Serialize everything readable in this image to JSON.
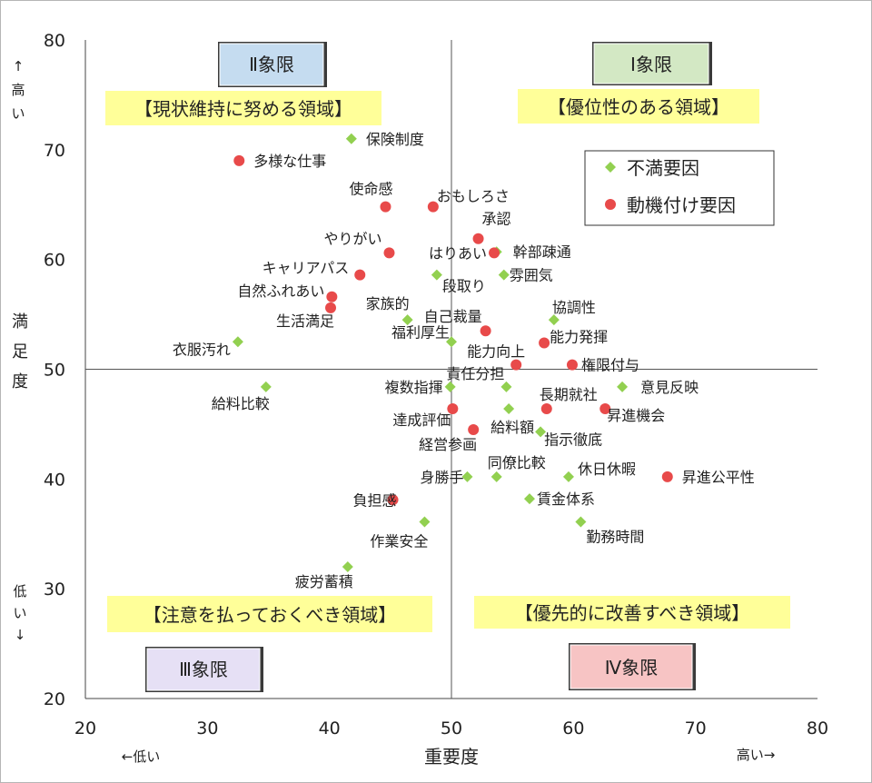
{
  "chart_data": {
    "type": "scatter",
    "title": "",
    "xlabel": "重要度",
    "ylabel": "満足度",
    "xlim": [
      20,
      80
    ],
    "ylim": [
      20,
      80
    ],
    "xticks": [
      20,
      30,
      40,
      50,
      60,
      70,
      80
    ],
    "yticks": [
      20,
      30,
      40,
      50,
      60,
      70,
      80
    ],
    "x_low_label": "←低い",
    "x_high_label": "高い→",
    "y_high_label": [
      "↑",
      "高",
      "い"
    ],
    "y_low_label": [
      "低",
      "い",
      "↓"
    ],
    "ylabel_chars": [
      "満",
      "足",
      "度"
    ],
    "quadrant_dividers": {
      "x": 50,
      "y": 50
    },
    "quadrants": [
      {
        "id": "q1",
        "label": "Ⅰ象限",
        "description": "【優位性のある領域】",
        "color": "#d3e8c4"
      },
      {
        "id": "q2",
        "label": "Ⅱ象限",
        "description": "【現状維持に努める領域】",
        "color": "#c5dcf0"
      },
      {
        "id": "q3",
        "label": "Ⅲ象限",
        "description": "【注意を払っておくべき領域】",
        "color": "#e6e0f5"
      },
      {
        "id": "q4",
        "label": "Ⅳ象限",
        "description": "【優先的に改善すべき領域】",
        "color": "#f7c4c4"
      }
    ],
    "description_bg": "#ffff99",
    "legend": [
      {
        "name": "不満要因",
        "marker": "diamond",
        "color": "#92d050"
      },
      {
        "name": "動機付け要因",
        "marker": "circle",
        "color": "#e84a4a"
      }
    ],
    "series": [
      {
        "name": "不満要因",
        "points": [
          {
            "label": "保険制度",
            "x": 41.8,
            "y": 71.0
          },
          {
            "label": "幹部疎通",
            "x": 53.7,
            "y": 60.7
          },
          {
            "label": "段取り",
            "x": 48.8,
            "y": 58.6
          },
          {
            "label": "雰囲気",
            "x": 54.3,
            "y": 58.6
          },
          {
            "label": "家族的",
            "x": 46.4,
            "y": 54.5
          },
          {
            "label": "協調性",
            "x": 58.4,
            "y": 54.5
          },
          {
            "label": "衣服汚れ",
            "x": 32.5,
            "y": 52.5
          },
          {
            "label": "福利厚生",
            "x": 50.0,
            "y": 52.5
          },
          {
            "label": "給料比較",
            "x": 34.8,
            "y": 48.4
          },
          {
            "label": "複数指揮",
            "x": 49.9,
            "y": 48.4
          },
          {
            "label": "責任分担",
            "x": 54.5,
            "y": 48.4
          },
          {
            "label": "意見反映",
            "x": 64.0,
            "y": 48.4
          },
          {
            "label": "給料額",
            "x": 54.7,
            "y": 46.4
          },
          {
            "label": "指示徹底",
            "x": 57.3,
            "y": 44.3
          },
          {
            "label": "身勝手",
            "x": 51.3,
            "y": 40.2
          },
          {
            "label": "同僚比較",
            "x": 53.7,
            "y": 40.2
          },
          {
            "label": "休日休暇",
            "x": 59.6,
            "y": 40.2
          },
          {
            "label": "賃金体系",
            "x": 56.4,
            "y": 38.2
          },
          {
            "label": "作業安全",
            "x": 47.8,
            "y": 36.1
          },
          {
            "label": "勤務時間",
            "x": 60.6,
            "y": 36.1
          },
          {
            "label": "疲労蓄積",
            "x": 41.5,
            "y": 32.0
          }
        ]
      },
      {
        "name": "動機付け要因",
        "points": [
          {
            "label": "多様な仕事",
            "x": 32.6,
            "y": 69.0
          },
          {
            "label": "使命感",
            "x": 44.6,
            "y": 64.8
          },
          {
            "label": "おもしろさ",
            "x": 48.5,
            "y": 64.8
          },
          {
            "label": "承認",
            "x": 52.2,
            "y": 61.9
          },
          {
            "label": "はりあい",
            "x": 53.5,
            "y": 60.6
          },
          {
            "label": "やりがい",
            "x": 44.9,
            "y": 60.6
          },
          {
            "label": "キャリアパス",
            "x": 42.5,
            "y": 58.6
          },
          {
            "label": "自然ふれあい",
            "x": 40.2,
            "y": 56.6
          },
          {
            "label": "生活満足",
            "x": 40.1,
            "y": 55.6
          },
          {
            "label": "自己裁量",
            "x": 52.8,
            "y": 53.5
          },
          {
            "label": "能力発揮",
            "x": 57.6,
            "y": 52.4
          },
          {
            "label": "能力向上",
            "x": 55.3,
            "y": 50.4
          },
          {
            "label": "権限付与",
            "x": 59.9,
            "y": 50.4
          },
          {
            "label": "長期就社",
            "x": 57.8,
            "y": 46.4
          },
          {
            "label": "昇進機会",
            "x": 62.6,
            "y": 46.4
          },
          {
            "label": "達成評価",
            "x": 50.1,
            "y": 46.4
          },
          {
            "label": "経営参画",
            "x": 51.8,
            "y": 44.5
          },
          {
            "label": "昇進公平性",
            "x": 67.7,
            "y": 40.2
          },
          {
            "label": "負担感",
            "x": 45.2,
            "y": 38.1
          }
        ]
      }
    ]
  }
}
